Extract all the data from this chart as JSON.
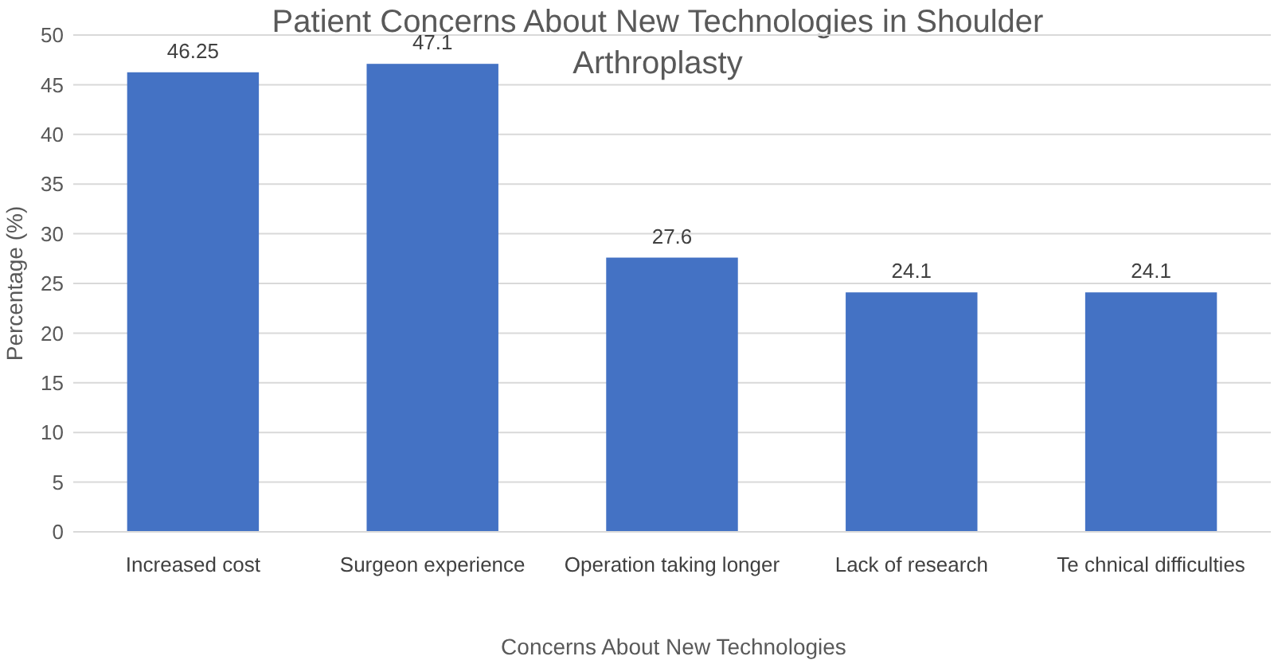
{
  "chart_data": {
    "type": "bar",
    "title": "Patient Concerns About New Technologies in Shoulder Arthroplasty",
    "xlabel": "Concerns About New Technologies",
    "ylabel": "Percentage (%)",
    "categories": [
      "Increased cost",
      "Surgeon experience",
      "Operation taking longer",
      "Lack of research",
      "Te chnical difficulties"
    ],
    "values": [
      46.25,
      47.1,
      27.6,
      24.1,
      24.1
    ],
    "color": "#4472c4",
    "ylim": [
      0,
      50
    ],
    "yticks": [
      0,
      5,
      10,
      15,
      20,
      25,
      30,
      35,
      40,
      45,
      50
    ],
    "grid": "y",
    "data_labels": true
  }
}
